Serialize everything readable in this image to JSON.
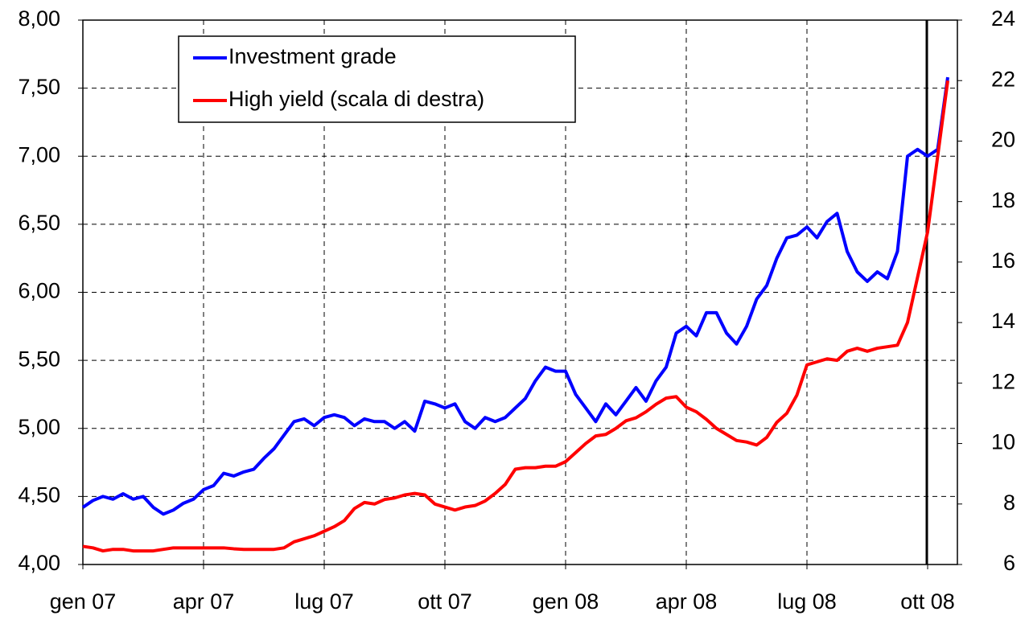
{
  "chart_data": {
    "type": "line",
    "categories": [
      "gen 07",
      null,
      null,
      null,
      null,
      null,
      null,
      null,
      null,
      null,
      null,
      null,
      "apr 07",
      null,
      null,
      null,
      null,
      null,
      null,
      null,
      null,
      null,
      null,
      null,
      "lug 07",
      null,
      null,
      null,
      null,
      null,
      null,
      null,
      null,
      null,
      null,
      null,
      "ott 07",
      null,
      null,
      null,
      null,
      null,
      null,
      null,
      null,
      null,
      null,
      null,
      "gen 08",
      null,
      null,
      null,
      null,
      null,
      null,
      null,
      null,
      null,
      null,
      null,
      "apr 08",
      null,
      null,
      null,
      null,
      null,
      null,
      null,
      null,
      null,
      null,
      null,
      "lug 08",
      null,
      null,
      null,
      null,
      null,
      null,
      null,
      null,
      null,
      null,
      null,
      "ott 08",
      null,
      null
    ],
    "series": [
      {
        "name": "Investment grade",
        "color": "#0000ff",
        "values": [
          4.42,
          4.47,
          4.5,
          4.48,
          4.52,
          4.48,
          4.5,
          4.42,
          4.37,
          4.4,
          4.45,
          4.48,
          4.55,
          4.58,
          4.67,
          4.65,
          4.68,
          4.7,
          4.78,
          4.85,
          4.95,
          5.05,
          5.07,
          5.02,
          5.08,
          5.1,
          5.08,
          5.02,
          5.07,
          5.05,
          5.05,
          5.0,
          5.05,
          4.98,
          5.2,
          5.18,
          5.15,
          5.18,
          5.05,
          5.0,
          5.08,
          5.05,
          5.08,
          5.15,
          5.22,
          5.35,
          5.45,
          5.42,
          5.42,
          5.25,
          5.15,
          5.05,
          5.18,
          5.1,
          5.2,
          5.3,
          5.2,
          5.35,
          5.45,
          5.7,
          5.75,
          5.68,
          5.85,
          5.85,
          5.7,
          5.62,
          5.75,
          5.95,
          6.05,
          6.25,
          6.4,
          6.42,
          6.48,
          6.4,
          6.52,
          6.58,
          6.3,
          6.15,
          6.08,
          6.15,
          6.1,
          6.3,
          7.0,
          7.05,
          7.0,
          7.05,
          7.58
        ]
      },
      {
        "name": "High yield (scala di destra)",
        "color": "#ff0000",
        "axis": "y2",
        "values": [
          6.6,
          6.55,
          6.45,
          6.5,
          6.5,
          6.45,
          6.45,
          6.45,
          6.5,
          6.55,
          6.55,
          6.55,
          6.55,
          6.55,
          6.55,
          6.52,
          6.5,
          6.5,
          6.5,
          6.5,
          6.55,
          6.75,
          6.85,
          6.95,
          7.1,
          7.25,
          7.45,
          7.85,
          8.05,
          8.0,
          8.15,
          8.2,
          8.3,
          8.35,
          8.3,
          8.0,
          7.9,
          7.8,
          7.9,
          7.95,
          8.1,
          8.35,
          8.65,
          9.15,
          9.2,
          9.2,
          9.25,
          9.25,
          9.4,
          9.7,
          10.0,
          10.25,
          10.3,
          10.5,
          10.75,
          10.85,
          11.05,
          11.3,
          11.5,
          11.55,
          11.2,
          11.05,
          10.8,
          10.5,
          10.3,
          10.1,
          10.05,
          9.95,
          10.2,
          10.7,
          11.0,
          11.6,
          12.6,
          12.7,
          12.8,
          12.75,
          13.05,
          13.15,
          13.05,
          13.15,
          13.2,
          13.25,
          14.0,
          15.5,
          17.0,
          19.5,
          22.0
        ]
      }
    ],
    "ylim": [
      4,
      8
    ],
    "yticks": [
      {
        "value": 4,
        "label": "4,00"
      },
      {
        "value": 4.5,
        "label": "4,50"
      },
      {
        "value": 5,
        "label": "5,00"
      },
      {
        "value": 5.5,
        "label": "5,50"
      },
      {
        "value": 6,
        "label": "6,00"
      },
      {
        "value": 6.5,
        "label": "6,50"
      },
      {
        "value": 7,
        "label": "7,00"
      },
      {
        "value": 7.5,
        "label": "7,50"
      },
      {
        "value": 8,
        "label": "8,00"
      }
    ],
    "y2lim": [
      6,
      24
    ],
    "y2ticks": [
      6,
      8,
      10,
      12,
      14,
      16,
      18,
      20,
      22,
      24
    ],
    "grid": true,
    "legend": "upper left"
  }
}
